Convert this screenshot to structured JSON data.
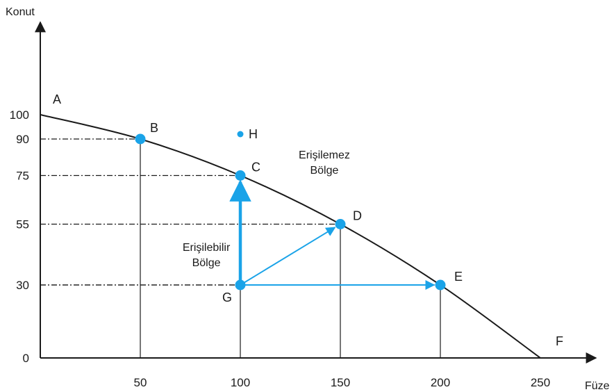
{
  "chart_data": {
    "type": "line",
    "title": "",
    "xlabel": "Füze",
    "ylabel": "Konut",
    "xlim": [
      0,
      260
    ],
    "ylim": [
      0,
      100
    ],
    "x_ticks": [
      "50",
      "100",
      "150",
      "200",
      "250"
    ],
    "y_ticks": [
      "0",
      "30",
      "55",
      "75",
      "90",
      "100"
    ],
    "curve": {
      "x": [
        0,
        50,
        100,
        150,
        200,
        250
      ],
      "y": [
        100,
        90,
        75,
        55,
        30,
        0
      ]
    },
    "points": [
      {
        "label": "A",
        "x": 0,
        "y": 100,
        "marker": false
      },
      {
        "label": "B",
        "x": 50,
        "y": 90,
        "marker": true
      },
      {
        "label": "C",
        "x": 100,
        "y": 75,
        "marker": true
      },
      {
        "label": "D",
        "x": 150,
        "y": 55,
        "marker": true
      },
      {
        "label": "E",
        "x": 200,
        "y": 30,
        "marker": true
      },
      {
        "label": "F",
        "x": 250,
        "y": 0,
        "marker": false
      },
      {
        "label": "G",
        "x": 100,
        "y": 30,
        "marker": true
      },
      {
        "label": "H",
        "x": 100,
        "y": 92,
        "marker": true,
        "small": true
      }
    ],
    "arrows": [
      {
        "from": "G",
        "to": "C"
      },
      {
        "from": "G",
        "to": "D"
      },
      {
        "from": "G",
        "to": "E"
      }
    ],
    "region_labels": [
      {
        "lines": [
          "Erişilemez",
          "Bölge"
        ],
        "x": 142,
        "y": 82
      },
      {
        "lines": [
          "Erişilebilir",
          "Bölge"
        ],
        "x": 83,
        "y": 44
      }
    ],
    "colors": {
      "accent": "#1aa3e8",
      "curve": "#1a1a1a",
      "axis": "#1a1a1a"
    }
  }
}
